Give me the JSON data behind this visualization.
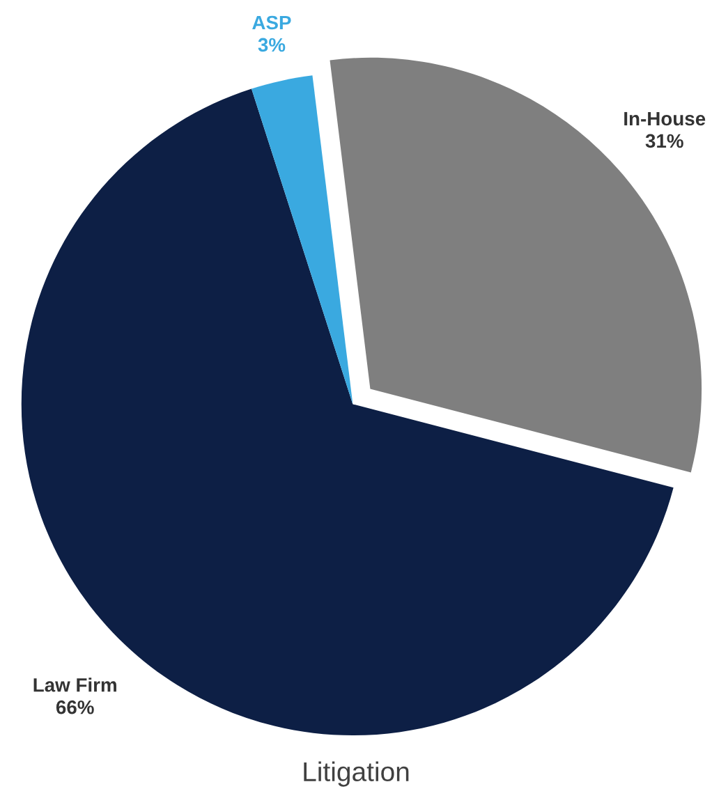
{
  "chart_data": {
    "type": "pie",
    "title": "Litigation",
    "categories": [
      "In-House",
      "Law Firm",
      "ASP"
    ],
    "values": [
      31,
      66,
      3
    ],
    "colors": [
      "#7f7f7f",
      "#0d1f45",
      "#3aa9e0"
    ],
    "value_labels": [
      "31%",
      "66%",
      "3%"
    ]
  }
}
